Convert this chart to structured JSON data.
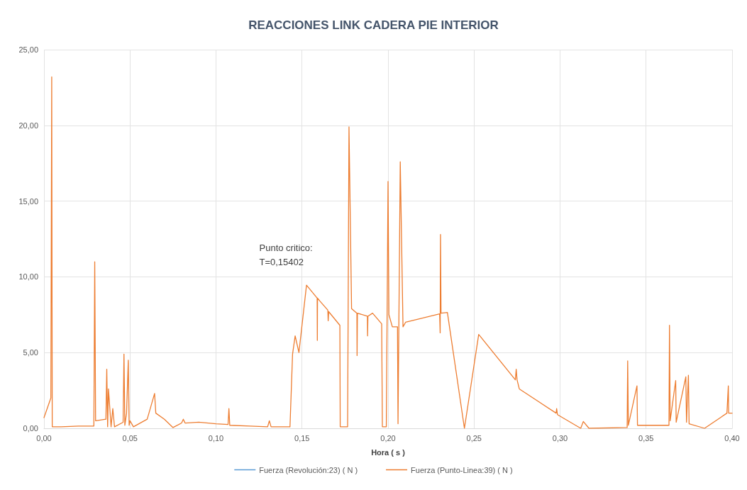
{
  "chart_data": {
    "type": "line",
    "title": "REACCIONES LINK CADERA PIE INTERIOR",
    "xlabel": "Hora ( s )",
    "x": [
      0,
      0.004,
      0.0045,
      0.0048,
      0.01,
      0.02,
      0.029,
      0.0295,
      0.03,
      0.036,
      0.0365,
      0.037,
      0.0375,
      0.039,
      0.04,
      0.041,
      0.046,
      0.0465,
      0.047,
      0.048,
      0.049,
      0.0495,
      0.05,
      0.052,
      0.06,
      0.0643,
      0.065,
      0.07,
      0.075,
      0.08,
      0.081,
      0.082,
      0.09,
      0.1,
      0.107,
      0.1075,
      0.108,
      0.12,
      0.13,
      0.131,
      0.132,
      0.143,
      0.1445,
      0.146,
      0.1482,
      0.1526,
      0.1588,
      0.1589,
      0.159,
      0.1604,
      0.165,
      0.1652,
      0.1655,
      0.172,
      0.1722,
      0.1765,
      0.1773,
      0.1788,
      0.1819,
      0.182,
      0.1822,
      0.188,
      0.1881,
      0.1883,
      0.191,
      0.1963,
      0.1967,
      0.199,
      0.2,
      0.2005,
      0.2025,
      0.2055,
      0.2058,
      0.2071,
      0.2087,
      0.2102,
      0.23,
      0.2303,
      0.2305,
      0.2308,
      0.2345,
      0.2444,
      0.2527,
      0.274,
      0.2745,
      0.275,
      0.2763,
      0.2977,
      0.298,
      0.2985,
      0.312,
      0.3135,
      0.3168,
      0.339,
      0.3393,
      0.3397,
      0.3447,
      0.345,
      0.3633,
      0.3636,
      0.364,
      0.3672,
      0.3675,
      0.3731,
      0.3735,
      0.3746,
      0.375,
      0.384,
      0.397,
      0.3978,
      0.398,
      0.4
    ],
    "series": [
      {
        "name": "Fuerza (Revolución:23) ( N )",
        "color": "#5b9bd5",
        "values": [
          null,
          null,
          null,
          null,
          null,
          null,
          null,
          null,
          null,
          null,
          null,
          null,
          null,
          null,
          null,
          null,
          null,
          null,
          null,
          null,
          null,
          null,
          null,
          null,
          null,
          null,
          null,
          null,
          null,
          null,
          null,
          null,
          null,
          null,
          null,
          null,
          null,
          null,
          null,
          null,
          null,
          null,
          null,
          null,
          null,
          null,
          null,
          null,
          null,
          null,
          null,
          null,
          null,
          null,
          null,
          null,
          null,
          null,
          null,
          null,
          null,
          null,
          null,
          null,
          null,
          null,
          null,
          null,
          null,
          null,
          null,
          null,
          null,
          null,
          null,
          null,
          null,
          null,
          null,
          null,
          null,
          null,
          null,
          null,
          null,
          null,
          null,
          null,
          null,
          null,
          null,
          null,
          null,
          null,
          null,
          null,
          null,
          null,
          null,
          null,
          null,
          null,
          null,
          null,
          null,
          null,
          null,
          null,
          null,
          null,
          null,
          null
        ]
      },
      {
        "name": "Fuerza (Punto-Linea:39) ( N )",
        "color": "#ed7d31",
        "values": [
          0.7,
          2.0,
          23.2,
          0.1,
          0.1,
          0.15,
          0.15,
          11.0,
          0.5,
          0.6,
          3.9,
          0.1,
          2.6,
          0.1,
          1.3,
          0.1,
          0.4,
          4.9,
          0.2,
          1.0,
          4.5,
          0.2,
          0.5,
          0.1,
          0.6,
          2.3,
          1.0,
          0.6,
          0.05,
          0.35,
          0.6,
          0.35,
          0.4,
          0.3,
          0.25,
          1.3,
          0.2,
          0.15,
          0.1,
          0.5,
          0.1,
          0.1,
          4.9,
          6.1,
          5.0,
          9.45,
          8.6,
          5.8,
          8.6,
          8.4,
          7.8,
          7.1,
          7.7,
          6.8,
          0.1,
          0.1,
          19.9,
          7.9,
          7.6,
          4.8,
          7.6,
          7.4,
          6.1,
          7.4,
          7.6,
          6.9,
          0.1,
          0.1,
          16.3,
          7.5,
          6.7,
          6.7,
          0.3,
          17.6,
          6.7,
          7.0,
          7.55,
          6.3,
          12.8,
          7.6,
          7.65,
          0.0,
          6.2,
          3.2,
          3.9,
          3.2,
          2.6,
          1.0,
          1.3,
          0.9,
          0.0,
          0.45,
          0.0,
          0.05,
          4.45,
          0.2,
          2.8,
          0.2,
          0.2,
          6.8,
          0.5,
          3.15,
          0.4,
          3.4,
          0.4,
          3.5,
          0.3,
          0.0,
          1.0,
          2.8,
          1.0,
          1.0
        ]
      }
    ],
    "xlim": [
      0,
      0.4
    ],
    "xticks": [
      {
        "value": 0,
        "label": "0,00"
      },
      {
        "value": 0.05,
        "label": "0,05"
      },
      {
        "value": 0.1,
        "label": "0,10"
      },
      {
        "value": 0.15,
        "label": "0,15"
      },
      {
        "value": 0.2,
        "label": "0,20"
      },
      {
        "value": 0.25,
        "label": "0,25"
      },
      {
        "value": 0.3,
        "label": "0,30"
      },
      {
        "value": 0.35,
        "label": "0,35"
      },
      {
        "value": 0.4,
        "label": "0,40"
      }
    ],
    "ylim": [
      0,
      25
    ],
    "yticks": [
      {
        "value": 0,
        "label": "0,00"
      },
      {
        "value": 5,
        "label": "5,00"
      },
      {
        "value": 10,
        "label": "10,00"
      },
      {
        "value": 15,
        "label": "15,00"
      },
      {
        "value": 20,
        "label": "20,00"
      },
      {
        "value": 25,
        "label": "25,00"
      }
    ],
    "annotations": [
      {
        "text": "Punto critico:\nT=0,15402",
        "x": 0.15402,
        "y": 9.45
      }
    ],
    "grid": true,
    "legend": "bottom",
    "marker": "none",
    "line_style": "solid"
  }
}
